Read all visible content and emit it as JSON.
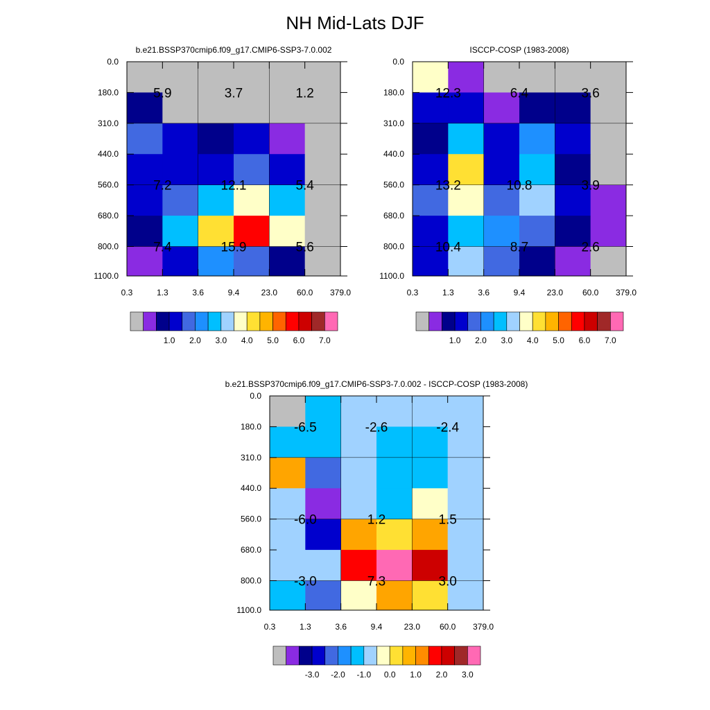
{
  "title": "NH Mid-Lats DJF",
  "chart_data": [
    {
      "type": "heatmap",
      "title": "b.e21.BSSP370cmip6.f09_g17.CMIP6-SSP3-7.0.002",
      "x_tick_labels": [
        "0.3",
        "1.3",
        "3.6",
        "9.4",
        "23.0",
        "60.0",
        "379.0"
      ],
      "y_tick_labels": [
        "0.0",
        "180.0",
        "310.0",
        "440.0",
        "560.0",
        "680.0",
        "800.0",
        "1100.0"
      ],
      "cell_colors": [
        [
          "#bebebe",
          "#bebebe",
          "#bebebe",
          "#bebebe",
          "#bebebe",
          "#bebebe"
        ],
        [
          "#00008b",
          "#bebebe",
          "#bebebe",
          "#bebebe",
          "#bebebe",
          "#bebebe"
        ],
        [
          "#4169e1",
          "#0000cd",
          "#00008b",
          "#0000cd",
          "#8a2be2",
          "#bebebe"
        ],
        [
          "#0000cd",
          "#0000cd",
          "#0000cd",
          "#4169e1",
          "#0000cd",
          "#bebebe"
        ],
        [
          "#0000cd",
          "#4169e1",
          "#00bfff",
          "#ffffc8",
          "#00bfff",
          "#bebebe"
        ],
        [
          "#00008b",
          "#00bfff",
          "#ffe033",
          "#ff0000",
          "#ffffc8",
          "#bebebe"
        ],
        [
          "#8a2be2",
          "#0000cd",
          "#1e90ff",
          "#4169e1",
          "#00008b",
          "#bebebe"
        ]
      ],
      "annotations": [
        {
          "text": "5.9",
          "x": 0,
          "y": 1
        },
        {
          "text": "3.7",
          "x": 2,
          "y": 1
        },
        {
          "text": "1.2",
          "x": 4,
          "y": 1
        },
        {
          "text": "7.2",
          "x": 0,
          "y": 4
        },
        {
          "text": "12.1",
          "x": 2,
          "y": 4
        },
        {
          "text": "5.4",
          "x": 4,
          "y": 4
        },
        {
          "text": "7.4",
          "x": 0,
          "y": 6
        },
        {
          "text": "15.9",
          "x": 2,
          "y": 6
        },
        {
          "text": "5.6",
          "x": 4,
          "y": 6
        }
      ],
      "colorbar": {
        "colors": [
          "#bebebe",
          "#8a2be2",
          "#00008b",
          "#0000cd",
          "#4169e1",
          "#1e90ff",
          "#00bfff",
          "#a0d2ff",
          "#ffffc8",
          "#ffe033",
          "#ffb400",
          "#ff6400",
          "#ff0000",
          "#cd0000",
          "#a02828",
          "#ff69b4"
        ],
        "labels": [
          "1.0",
          "2.0",
          "3.0",
          "4.0",
          "5.0",
          "6.0",
          "7.0"
        ]
      }
    },
    {
      "type": "heatmap",
      "title": "ISCCP-COSP (1983-2008)",
      "x_tick_labels": [
        "0.3",
        "1.3",
        "3.6",
        "9.4",
        "23.0",
        "60.0",
        "379.0"
      ],
      "y_tick_labels": [
        "0.0",
        "180.0",
        "310.0",
        "440.0",
        "560.0",
        "680.0",
        "800.0",
        "1100.0"
      ],
      "cell_colors": [
        [
          "#ffffc8",
          "#8a2be2",
          "#bebebe",
          "#bebebe",
          "#bebebe",
          "#bebebe"
        ],
        [
          "#0000cd",
          "#0000cd",
          "#8a2be2",
          "#00008b",
          "#00008b",
          "#bebebe"
        ],
        [
          "#00008b",
          "#00bfff",
          "#0000cd",
          "#1e90ff",
          "#0000cd",
          "#bebebe"
        ],
        [
          "#0000cd",
          "#ffe033",
          "#0000cd",
          "#00bfff",
          "#00008b",
          "#bebebe"
        ],
        [
          "#4169e1",
          "#ffffc8",
          "#4169e1",
          "#a0d2ff",
          "#0000cd",
          "#8a2be2"
        ],
        [
          "#0000cd",
          "#00bfff",
          "#1e90ff",
          "#4169e1",
          "#00008b",
          "#8a2be2"
        ],
        [
          "#0000cd",
          "#a0d2ff",
          "#4169e1",
          "#00008b",
          "#8a2be2",
          "#bebebe"
        ]
      ],
      "annotations": [
        {
          "text": "12.3",
          "x": 0,
          "y": 1
        },
        {
          "text": "6.4",
          "x": 2,
          "y": 1
        },
        {
          "text": "3.6",
          "x": 4,
          "y": 1
        },
        {
          "text": "13.2",
          "x": 0,
          "y": 4
        },
        {
          "text": "10.8",
          "x": 2,
          "y": 4
        },
        {
          "text": "3.9",
          "x": 4,
          "y": 4
        },
        {
          "text": "10.4",
          "x": 0,
          "y": 6
        },
        {
          "text": "8.7",
          "x": 2,
          "y": 6
        },
        {
          "text": "2.6",
          "x": 4,
          "y": 6
        }
      ],
      "colorbar": {
        "colors": [
          "#bebebe",
          "#8a2be2",
          "#00008b",
          "#0000cd",
          "#4169e1",
          "#1e90ff",
          "#00bfff",
          "#a0d2ff",
          "#ffffc8",
          "#ffe033",
          "#ffb400",
          "#ff6400",
          "#ff0000",
          "#cd0000",
          "#a02828",
          "#ff69b4"
        ],
        "labels": [
          "1.0",
          "2.0",
          "3.0",
          "4.0",
          "5.0",
          "6.0",
          "7.0"
        ]
      }
    },
    {
      "type": "heatmap",
      "title": "b.e21.BSSP370cmip6.f09_g17.CMIP6-SSP3-7.0.002 - ISCCP-COSP (1983-2008)",
      "x_tick_labels": [
        "0.3",
        "1.3",
        "3.6",
        "9.4",
        "23.0",
        "60.0",
        "379.0"
      ],
      "y_tick_labels": [
        "0.0",
        "180.0",
        "310.0",
        "440.0",
        "560.0",
        "680.0",
        "800.0",
        "1100.0"
      ],
      "cell_colors": [
        [
          "#bebebe",
          "#00bfff",
          "#a0d2ff",
          "#a0d2ff",
          "#a0d2ff",
          "#a0d2ff"
        ],
        [
          "#00bfff",
          "#00bfff",
          "#a0d2ff",
          "#00bfff",
          "#00bfff",
          "#a0d2ff"
        ],
        [
          "#ffa500",
          "#4169e1",
          "#a0d2ff",
          "#00bfff",
          "#00bfff",
          "#a0d2ff"
        ],
        [
          "#a0d2ff",
          "#8a2be2",
          "#a0d2ff",
          "#00bfff",
          "#ffffc8",
          "#a0d2ff"
        ],
        [
          "#a0d2ff",
          "#0000cd",
          "#ffa500",
          "#ffe033",
          "#ffa500",
          "#a0d2ff"
        ],
        [
          "#a0d2ff",
          "#a0d2ff",
          "#ff0000",
          "#ff69b4",
          "#cd0000",
          "#a0d2ff"
        ],
        [
          "#00bfff",
          "#4169e1",
          "#ffffc8",
          "#ffa500",
          "#ffe033",
          "#a0d2ff"
        ]
      ],
      "annotations": [
        {
          "text": "-6.5",
          "x": 0,
          "y": 1
        },
        {
          "text": "-2.6",
          "x": 2,
          "y": 1
        },
        {
          "text": "-2.4",
          "x": 4,
          "y": 1
        },
        {
          "text": "-6.0",
          "x": 0,
          "y": 4
        },
        {
          "text": "1.2",
          "x": 2,
          "y": 4
        },
        {
          "text": "1.5",
          "x": 4,
          "y": 4
        },
        {
          "text": "-3.0",
          "x": 0,
          "y": 6
        },
        {
          "text": "7.3",
          "x": 2,
          "y": 6
        },
        {
          "text": "3.0",
          "x": 4,
          "y": 6
        }
      ],
      "colorbar": {
        "colors": [
          "#bebebe",
          "#8a2be2",
          "#00008b",
          "#0000cd",
          "#4169e1",
          "#1e90ff",
          "#00bfff",
          "#a0d2ff",
          "#ffffc8",
          "#ffe033",
          "#ffb400",
          "#ff8c00",
          "#ff0000",
          "#cd0000",
          "#a02828",
          "#ff69b4"
        ],
        "labels": [
          "-3.0",
          "-2.0",
          "-1.0",
          "0.0",
          "1.0",
          "2.0",
          "3.0"
        ]
      }
    }
  ]
}
